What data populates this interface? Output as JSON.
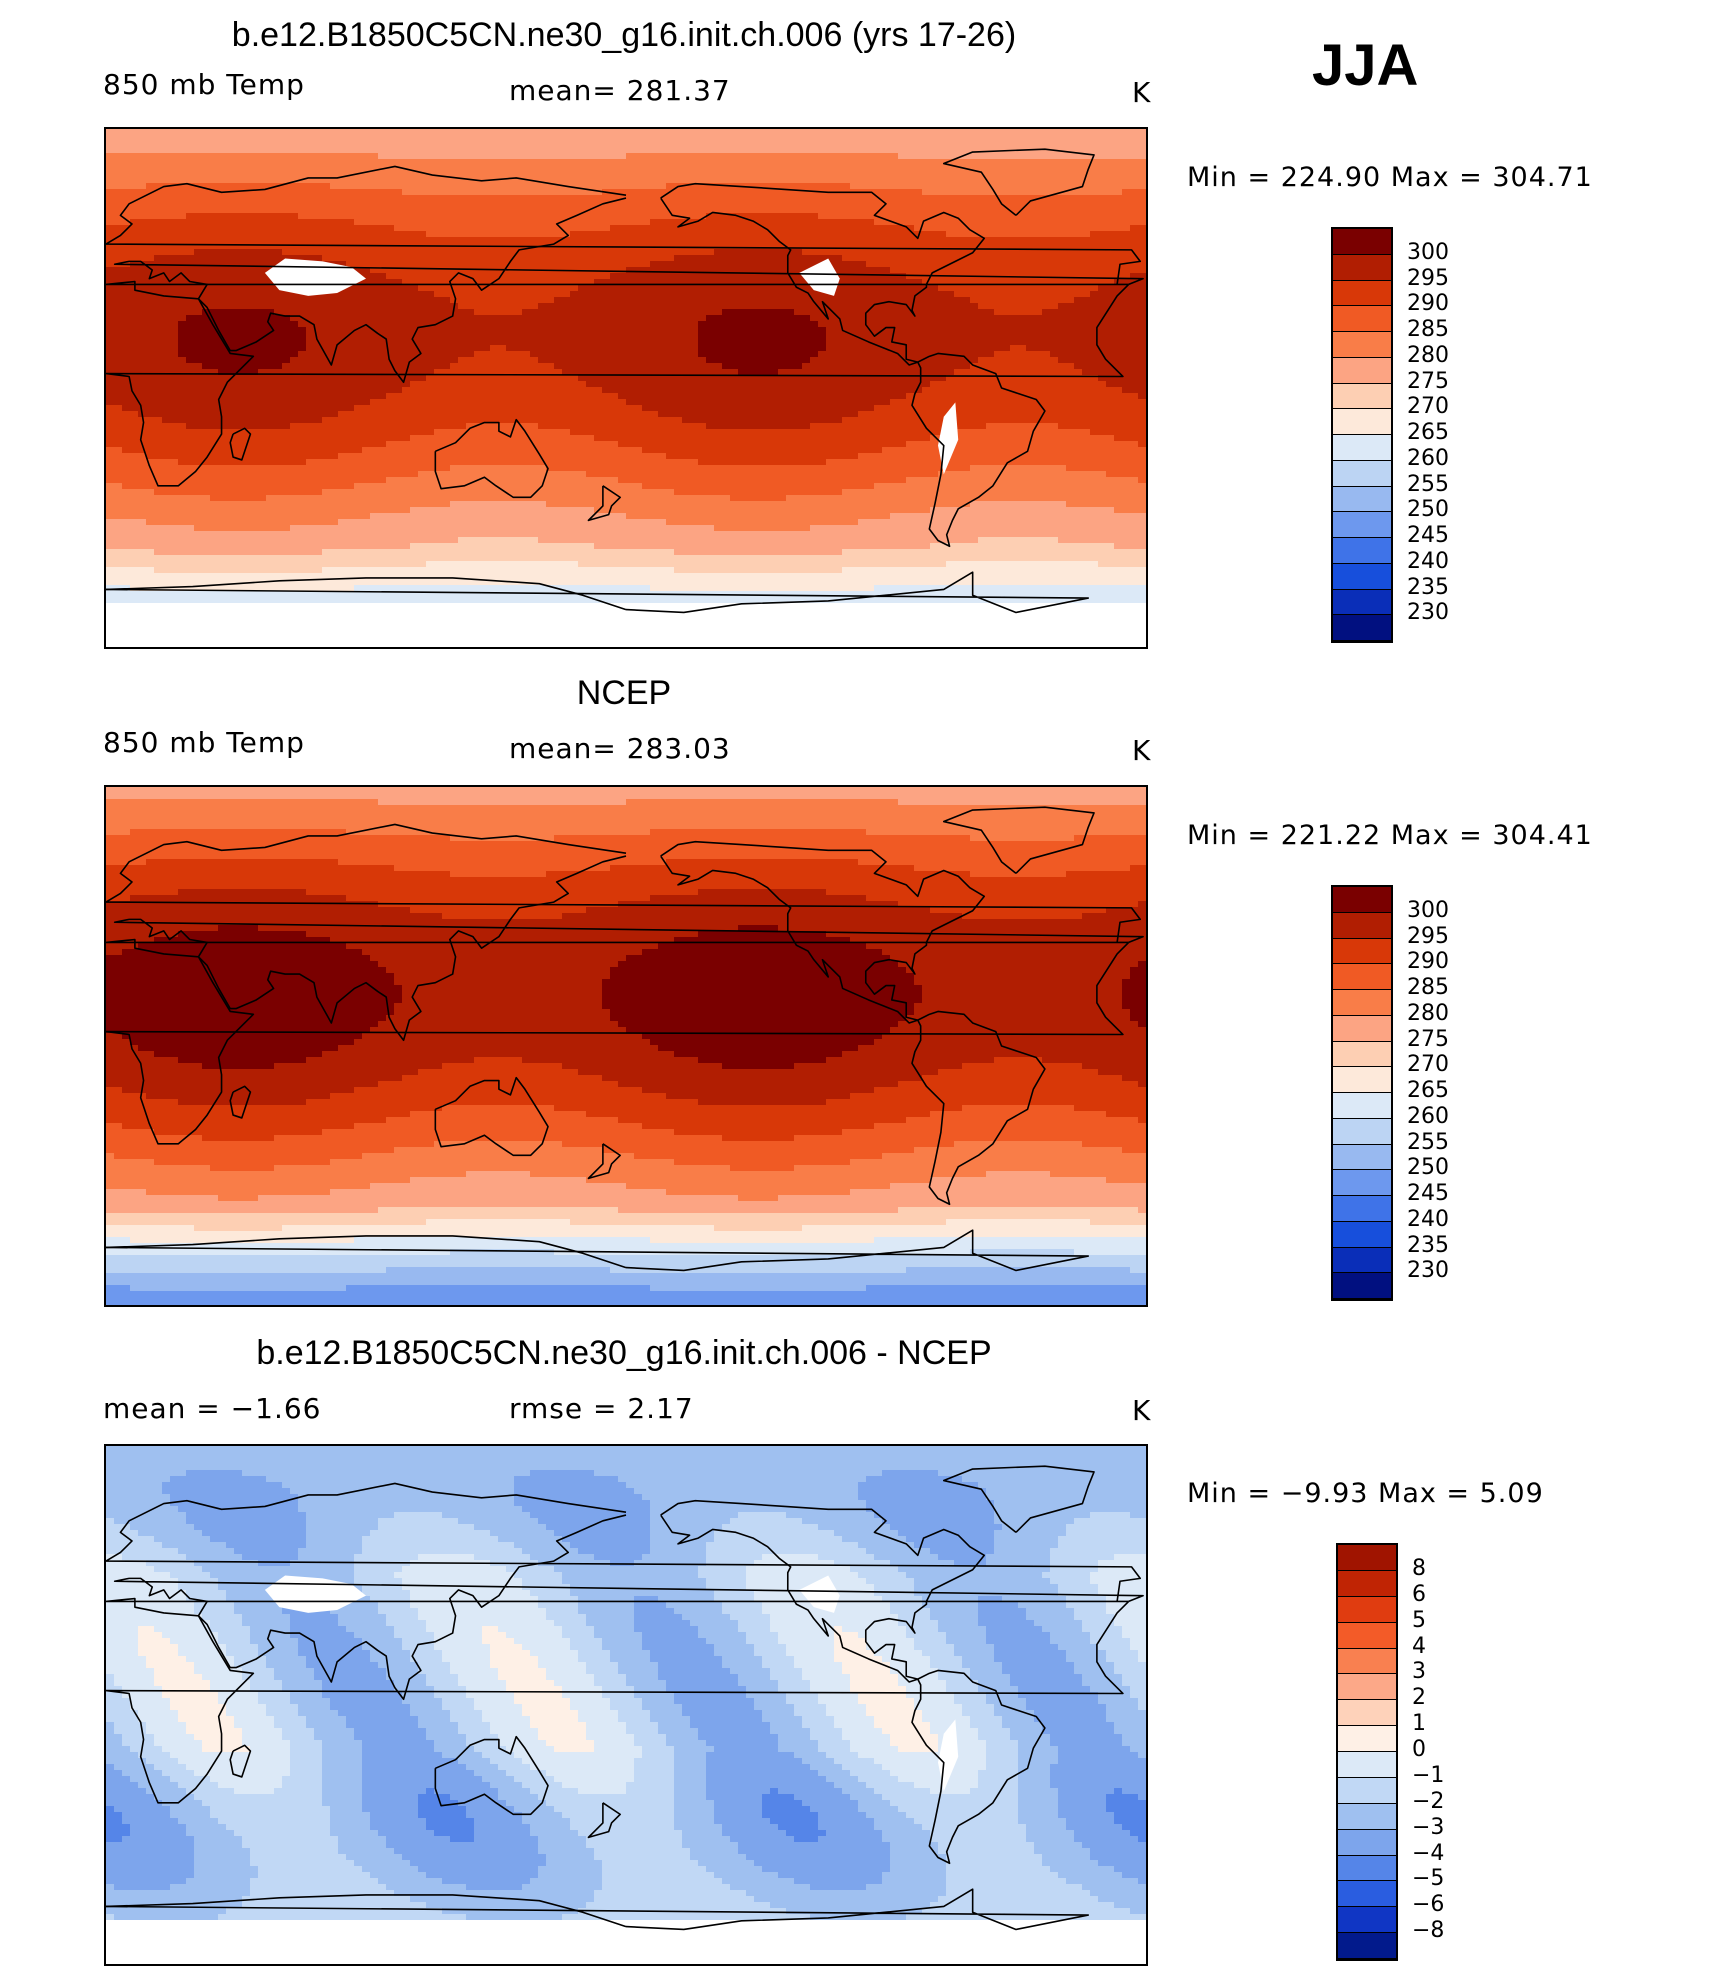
{
  "season": "JJA",
  "panels": [
    {
      "title": "b.e12.B1850C5CN.ne30_g16.init.ch.006 (yrs 17-26)",
      "left_label": "850 mb Temp",
      "center_label": "mean= 281.37",
      "unit": "K",
      "stats": "Min  =  224.90  Max  =  304.71",
      "legend_labels": [
        "300",
        "295",
        "290",
        "285",
        "280",
        "275",
        "270",
        "265",
        "260",
        "255",
        "250",
        "245",
        "240",
        "235",
        "230"
      ],
      "legend_colors": [
        "#7a0000",
        "#b11e02",
        "#d83808",
        "#f05a24",
        "#f97d48",
        "#fca483",
        "#fdcfb3",
        "#fde9da",
        "#dce9f7",
        "#bcd4f3",
        "#98b9f0",
        "#6d98ee",
        "#3f73e8",
        "#174fdc",
        "#0a2eb8",
        "#011080"
      ],
      "field": {
        "min": 224.9,
        "max": 304.71,
        "base": 282,
        "amp": 16
      }
    },
    {
      "title": "NCEP",
      "left_label": "850 mb Temp",
      "center_label": "mean= 283.03",
      "unit": "K",
      "stats": "Min  =  221.22  Max  =  304.41",
      "legend_labels": [
        "300",
        "295",
        "290",
        "285",
        "280",
        "275",
        "270",
        "265",
        "260",
        "255",
        "250",
        "245",
        "240",
        "235",
        "230"
      ],
      "legend_colors": [
        "#7a0000",
        "#b11e02",
        "#d83808",
        "#f05a24",
        "#f97d48",
        "#fca483",
        "#fdcfb3",
        "#fde9da",
        "#dce9f7",
        "#bcd4f3",
        "#98b9f0",
        "#6d98ee",
        "#3f73e8",
        "#174fdc",
        "#0a2eb8",
        "#011080"
      ],
      "field": {
        "min": 221.22,
        "max": 304.41,
        "base": 284,
        "amp": 17
      }
    },
    {
      "title": "b.e12.B1850C5CN.ne30_g16.init.ch.006 - NCEP",
      "left_label": "mean =    −1.66",
      "center_label": "rmse =     2.17",
      "unit": "K",
      "stats": "Min  =    −9.93  Max  =      5.09",
      "legend_labels": [
        "8",
        "6",
        "5",
        "4",
        "3",
        "2",
        "1",
        "0",
        "−1",
        "−2",
        "−3",
        "−4",
        "−5",
        "−6",
        "−8"
      ],
      "legend_colors": [
        "#a01400",
        "#c02404",
        "#e03c10",
        "#f35b28",
        "#f98050",
        "#fca888",
        "#fed2ba",
        "#fef0e6",
        "#dce9f7",
        "#c1d8f5",
        "#9fc0f0",
        "#7da5ec",
        "#5585e8",
        "#2a5de0",
        "#1036c4",
        "#021a8c"
      ],
      "field": {
        "min": -9.93,
        "max": 5.09,
        "mean": -1.66
      }
    }
  ]
}
